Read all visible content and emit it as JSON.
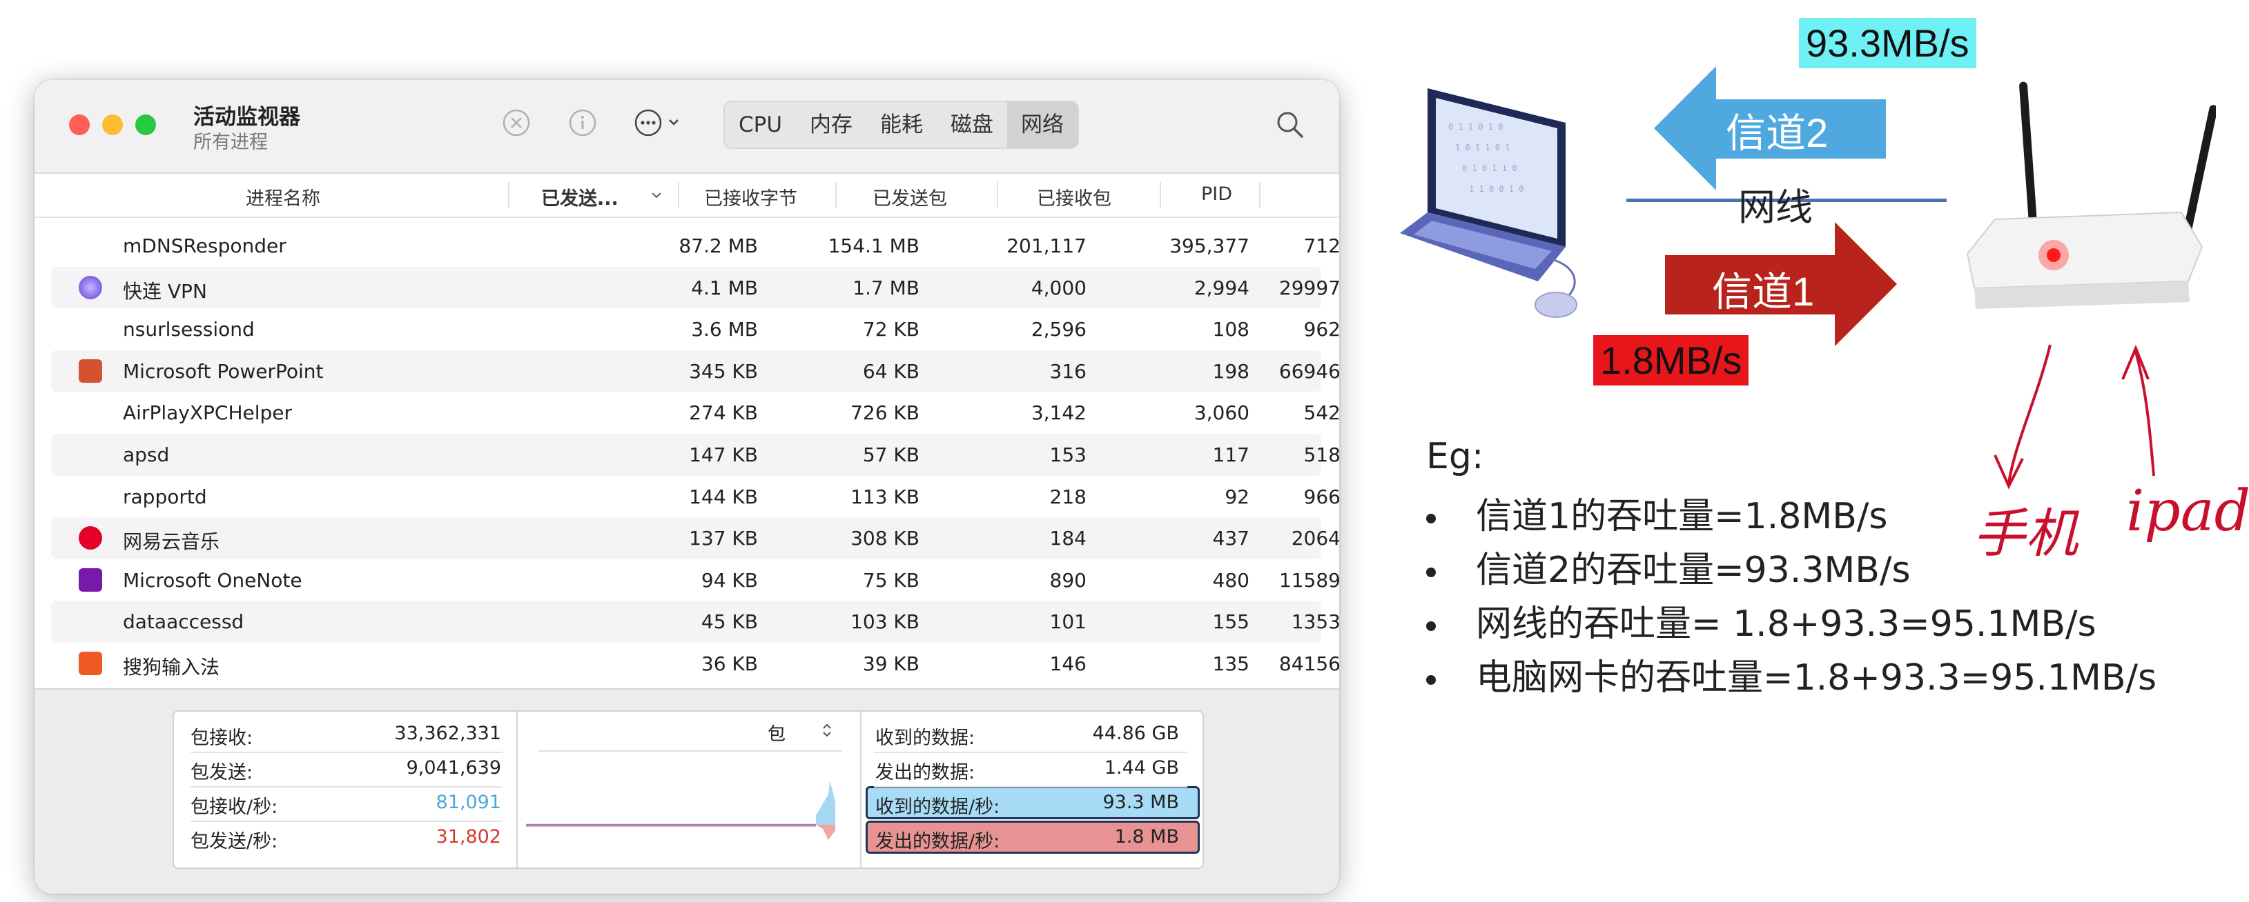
{
  "window": {
    "title": "活动监视器",
    "subtitle": "所有进程",
    "tabs": [
      "CPU",
      "内存",
      "能耗",
      "磁盘",
      "网络"
    ],
    "active_tab": "网络"
  },
  "columns": [
    "进程名称",
    "已发送...",
    "已接收字节",
    "已发送包",
    "已接收包",
    "PID"
  ],
  "processes": [
    {
      "name": "mDNSResponder",
      "sent": "87.2 MB",
      "recv": "154.1 MB",
      "pkts_sent": "201,117",
      "pkts_recv": "395,377",
      "pid": "712",
      "icon": "none"
    },
    {
      "name": "快连 VPN",
      "sent": "4.1 MB",
      "recv": "1.7 MB",
      "pkts_sent": "4,000",
      "pkts_recv": "2,994",
      "pid": "29997",
      "icon": "vpn-app-icon"
    },
    {
      "name": "nsurlsessiond",
      "sent": "3.6 MB",
      "recv": "72 KB",
      "pkts_sent": "2,596",
      "pkts_recv": "108",
      "pid": "962",
      "icon": "none"
    },
    {
      "name": "Microsoft PowerPoint",
      "sent": "345 KB",
      "recv": "64 KB",
      "pkts_sent": "316",
      "pkts_recv": "198",
      "pid": "66946",
      "icon": "powerpoint-app-icon"
    },
    {
      "name": "AirPlayXPCHelper",
      "sent": "274 KB",
      "recv": "726 KB",
      "pkts_sent": "3,142",
      "pkts_recv": "3,060",
      "pid": "542",
      "icon": "none"
    },
    {
      "name": "apsd",
      "sent": "147 KB",
      "recv": "57 KB",
      "pkts_sent": "153",
      "pkts_recv": "117",
      "pid": "518",
      "icon": "none"
    },
    {
      "name": "rapportd",
      "sent": "144 KB",
      "recv": "113 KB",
      "pkts_sent": "218",
      "pkts_recv": "92",
      "pid": "966",
      "icon": "none"
    },
    {
      "name": "网易云音乐",
      "sent": "137 KB",
      "recv": "308 KB",
      "pkts_sent": "184",
      "pkts_recv": "437",
      "pid": "2064",
      "icon": "netease-music-app-icon"
    },
    {
      "name": "Microsoft OneNote",
      "sent": "94 KB",
      "recv": "75 KB",
      "pkts_sent": "890",
      "pkts_recv": "480",
      "pid": "11589",
      "icon": "onenote-app-icon"
    },
    {
      "name": "dataaccessd",
      "sent": "45 KB",
      "recv": "103 KB",
      "pkts_sent": "101",
      "pkts_recv": "155",
      "pid": "1353",
      "icon": "none"
    },
    {
      "name": "搜狗输入法",
      "sent": "36 KB",
      "recv": "39 KB",
      "pkts_sent": "146",
      "pkts_recv": "135",
      "pid": "84156",
      "icon": "sogou-app-icon"
    }
  ],
  "stats_left": [
    {
      "label": "包接收:",
      "value": "33,362,331",
      "color": "#222222"
    },
    {
      "label": "包发送:",
      "value": "9,041,639",
      "color": "#222222"
    },
    {
      "label": "包接收/秒:",
      "value": "81,091",
      "color": "#4aa8d8"
    },
    {
      "label": "包发送/秒:",
      "value": "31,802",
      "color": "#d33a2c"
    }
  ],
  "graph_selector": "包",
  "stats_right": [
    {
      "label": "收到的数据:",
      "value": "44.86 GB"
    },
    {
      "label": "发出的数据:",
      "value": "1.44 GB"
    },
    {
      "label": "收到的数据/秒:",
      "value": "93.3 MB"
    },
    {
      "label": "发出的数据/秒:",
      "value": "1.8 MB"
    }
  ],
  "diagram": {
    "rate_top": "93.3MB/s",
    "rate_bottom": "1.8MB/s",
    "channel2": "信道2",
    "channel1": "信道1",
    "cable": "网线",
    "handwritten_phone": "手机",
    "handwritten_ipad": "ipad",
    "colors": {
      "cyan_label": "#6ff0f5",
      "red_label": "#e8161b",
      "blue_arrow": "#4fa8e0",
      "red_arrow": "#b8231c"
    }
  },
  "example": {
    "title": "Eg:",
    "bullets": [
      "信道1的吞吐量=1.8MB/s",
      "信道2的吞吐量=93.3MB/s",
      "网线的吞吐量= 1.8+93.3=95.1MB/s",
      "电脑网卡的吞吐量=1.8+93.3=95.1MB/s"
    ]
  }
}
